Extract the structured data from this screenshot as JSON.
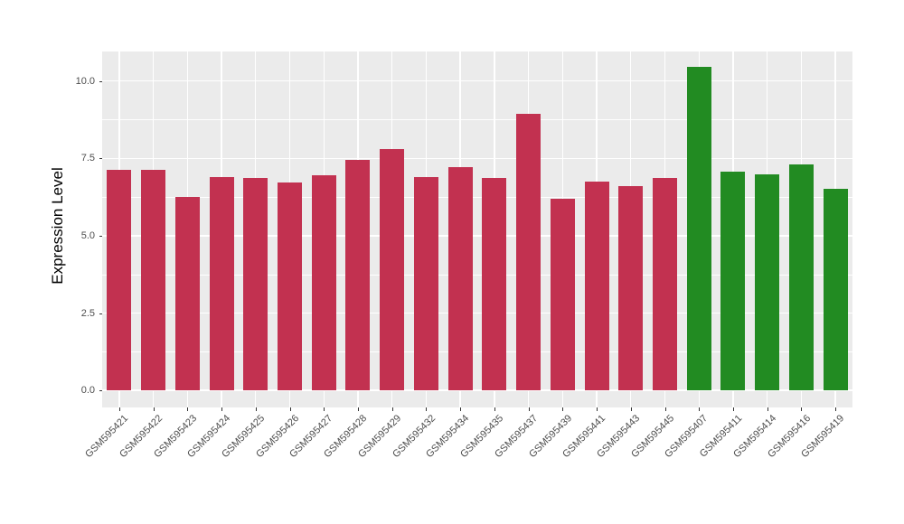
{
  "chart_data": {
    "type": "bar",
    "title": "",
    "xlabel": "",
    "ylabel": "Expression Level",
    "categories": [
      "GSM595421",
      "GSM595422",
      "GSM595423",
      "GSM595424",
      "GSM595425",
      "GSM595426",
      "GSM595427",
      "GSM595428",
      "GSM595429",
      "GSM595432",
      "GSM595434",
      "GSM595435",
      "GSM595437",
      "GSM595439",
      "GSM595441",
      "GSM595443",
      "GSM595445",
      "GSM595407",
      "GSM595411",
      "GSM595414",
      "GSM595416",
      "GSM595419"
    ],
    "values": [
      7.13,
      7.13,
      6.26,
      6.9,
      6.87,
      6.71,
      6.94,
      7.46,
      7.79,
      6.89,
      7.2,
      6.86,
      8.95,
      6.2,
      6.76,
      6.61,
      6.85,
      10.45,
      7.08,
      6.97,
      7.31,
      6.52
    ],
    "bar_groups": [
      "red",
      "red",
      "red",
      "red",
      "red",
      "red",
      "red",
      "red",
      "red",
      "red",
      "red",
      "red",
      "red",
      "red",
      "red",
      "red",
      "red",
      "green",
      "green",
      "green",
      "green",
      "green"
    ],
    "group_colors": {
      "red": "#C23150",
      "green": "#228B22"
    },
    "ytick_labels": [
      "0.0",
      "2.5",
      "5.0",
      "7.5",
      "10.0"
    ],
    "ytick_values": [
      0,
      2.5,
      5,
      7.5,
      10
    ],
    "minor_gridline_values": [
      1.25,
      3.75,
      6.25,
      8.75
    ],
    "ylim": [
      -0.55,
      10.95
    ],
    "grid": true,
    "legend_position": "none",
    "styles": {
      "figure_bg": "#FFFFFF",
      "panel_bg": "#EBEBEB",
      "grid_color": "#FFFFFF",
      "axis_text_color": "#4D4D4D",
      "axis_title_color": "#000000",
      "tick_color": "#333333"
    }
  }
}
